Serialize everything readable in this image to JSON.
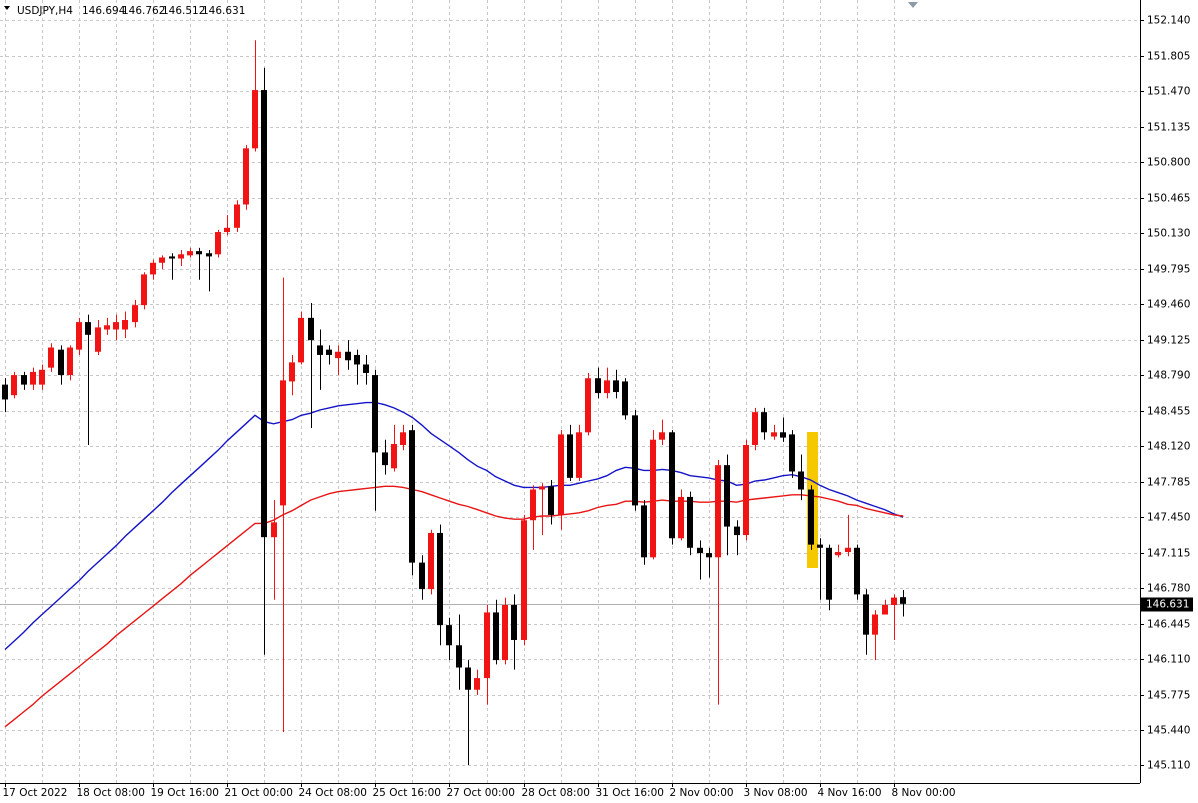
{
  "chart_data": {
    "type": "candlestick",
    "title": "USDJPY,H4",
    "grid": true,
    "up_color": "#f01414",
    "down_color": "#000000",
    "ylim": [
      144.94,
      152.33
    ],
    "yticks": [
      {
        "value": 152.14,
        "label": "152.140"
      },
      151.805,
      {
        "value": 151.47,
        "label": "151.470"
      },
      151.135,
      {
        "value": 150.8,
        "label": "150.800"
      },
      150.465,
      {
        "value": 150.13,
        "label": "150.130"
      },
      149.795,
      {
        "value": 149.46,
        "label": "149.460"
      },
      149.125,
      {
        "value": 148.79,
        "label": "148.790"
      },
      148.455,
      {
        "value": 148.12,
        "label": "148.120"
      },
      147.785,
      {
        "value": 147.45,
        "label": "147.450"
      },
      147.115,
      {
        "value": 146.78,
        "label": "146.780"
      },
      146.445,
      {
        "value": 146.11,
        "label": "146.110"
      },
      145.775,
      {
        "value": 145.44,
        "label": "145.440"
      },
      {
        "value": 145.11,
        "label": "145.110"
      }
    ],
    "categories": [
      "17 Oct 2022",
      null,
      null,
      null,
      null,
      null,
      null,
      null,
      "18 Oct 08:00",
      null,
      null,
      null,
      null,
      null,
      null,
      null,
      "19 Oct 16:00",
      null,
      null,
      null,
      null,
      null,
      null,
      null,
      "21 Oct 00:00",
      null,
      null,
      null,
      null,
      null,
      null,
      null,
      "24 Oct 08:00",
      null,
      null,
      null,
      null,
      null,
      null,
      null,
      "25 Oct 16:00",
      null,
      null,
      null,
      null,
      null,
      null,
      null,
      "27 Oct 00:00",
      null,
      null,
      null,
      null,
      null,
      null,
      null,
      "28 Oct 08:00",
      null,
      null,
      null,
      null,
      null,
      null,
      null,
      "31 Oct 16:00",
      null,
      null,
      null,
      null,
      null,
      null,
      null,
      "2 Nov 00:00",
      null,
      null,
      null,
      null,
      null,
      null,
      null,
      "3 Nov 08:00",
      null,
      null,
      null,
      null,
      null,
      null,
      null,
      "4 Nov 16:00",
      null,
      null,
      null,
      null,
      null,
      null,
      null,
      "8 Nov 00:00",
      null
    ],
    "open": [
      148.7,
      148.6,
      148.79,
      148.7,
      148.7,
      148.86,
      149.03,
      148.79,
      149.03,
      149.29,
      149.01,
      149.22,
      149.22,
      149.22,
      149.29,
      149.45,
      149.74,
      149.85,
      149.91,
      149.89,
      149.92,
      149.96,
      149.94,
      149.93,
      150.14,
      150.18,
      150.4,
      150.93,
      151.48,
      147.26,
      147.56,
      148.73,
      148.91,
      149.33,
      149.07,
      149.03,
      148.95,
      149.01,
      148.98,
      148.89,
      148.79,
      148.06,
      147.91,
      148.13,
      148.27,
      147.02,
      146.77,
      147.3,
      146.43,
      146.24,
      146.03,
      145.82,
      145.93,
      146.55,
      146.1,
      146.62,
      146.29,
      147.42,
      147.71,
      147.74,
      147.47,
      148.23,
      147.82,
      148.25,
      148.76,
      148.62,
      148.74,
      148.73,
      148.41,
      147.56,
      147.07,
      148.18,
      148.25,
      147.25,
      147.64,
      147.16,
      147.11,
      147.07,
      147.94,
      147.36,
      147.28,
      148.13,
      148.44,
      148.21,
      148.25,
      148.23,
      147.88,
      147.71,
      147.19,
      147.16,
      147.09,
      147.12,
      147.16,
      146.72,
      146.34,
      146.53,
      146.62,
      146.694
    ],
    "high": [
      148.76,
      148.82,
      148.82,
      148.86,
      148.89,
      149.09,
      149.07,
      149.07,
      149.33,
      149.36,
      149.31,
      149.33,
      149.36,
      149.39,
      149.5,
      149.76,
      149.88,
      149.92,
      149.94,
      149.97,
      149.99,
      149.99,
      149.97,
      150.16,
      150.3,
      150.44,
      150.96,
      151.95,
      151.69,
      147.61,
      149.71,
      148.98,
      149.39,
      149.47,
      149.22,
      149.07,
      149.07,
      149.12,
      149.03,
      148.98,
      148.84,
      148.18,
      148.32,
      148.32,
      148.32,
      147.09,
      147.33,
      147.38,
      146.5,
      146.53,
      146.1,
      146.01,
      146.62,
      146.67,
      146.69,
      146.72,
      147.47,
      147.75,
      147.77,
      147.8,
      148.27,
      148.32,
      148.32,
      148.81,
      148.86,
      148.86,
      148.84,
      148.76,
      148.46,
      147.61,
      148.27,
      148.37,
      148.27,
      147.71,
      147.69,
      147.23,
      147.16,
      147.99,
      148.04,
      147.42,
      148.18,
      148.48,
      148.48,
      148.32,
      148.39,
      148.27,
      148.04,
      147.75,
      147.25,
      147.19,
      147.19,
      147.47,
      147.19,
      146.77,
      146.57,
      146.67,
      146.72,
      146.762
    ],
    "low": [
      148.44,
      148.57,
      148.65,
      148.65,
      148.65,
      148.82,
      148.7,
      148.74,
      148.98,
      148.13,
      148.98,
      149.17,
      149.12,
      149.14,
      149.24,
      149.41,
      149.69,
      149.79,
      149.69,
      149.82,
      149.9,
      149.69,
      149.58,
      149.9,
      150.11,
      150.14,
      150.35,
      150.9,
      146.15,
      146.67,
      145.42,
      148.6,
      148.89,
      148.29,
      148.65,
      148.89,
      148.79,
      148.84,
      148.7,
      148.7,
      147.51,
      147.85,
      147.88,
      148.08,
      146.9,
      146.67,
      146.72,
      146.24,
      146.1,
      145.82,
      145.11,
      145.77,
      145.68,
      146.06,
      146.06,
      146.01,
      146.24,
      147.14,
      147.28,
      147.38,
      147.33,
      147.79,
      147.79,
      148.22,
      148.57,
      148.57,
      148.57,
      148.37,
      147.51,
      147.0,
      147.05,
      148.13,
      147.19,
      147.23,
      147.09,
      146.86,
      146.88,
      145.68,
      147.09,
      147.09,
      147.23,
      148.08,
      148.18,
      148.18,
      148.16,
      147.82,
      147.61,
      147.14,
      146.67,
      146.57,
      147.07,
      147.08,
      146.67,
      146.15,
      146.1,
      146.53,
      146.29,
      146.512
    ],
    "close": [
      148.56,
      148.79,
      148.7,
      148.82,
      148.84,
      149.05,
      148.79,
      149.05,
      149.29,
      149.17,
      149.24,
      149.26,
      149.29,
      149.31,
      149.45,
      149.74,
      149.85,
      149.9,
      149.89,
      149.93,
      149.96,
      149.93,
      149.91,
      150.14,
      150.18,
      150.4,
      150.93,
      151.48,
      147.26,
      147.4,
      148.74,
      148.91,
      149.33,
      149.12,
      148.98,
      148.98,
      149.01,
      148.93,
      148.89,
      148.81,
      148.06,
      147.94,
      148.14,
      148.25,
      147.02,
      146.77,
      147.3,
      146.43,
      146.24,
      146.03,
      145.82,
      145.93,
      146.55,
      146.1,
      146.62,
      146.29,
      147.42,
      147.71,
      147.74,
      147.47,
      148.23,
      147.82,
      148.25,
      148.76,
      148.62,
      148.74,
      148.63,
      148.41,
      147.56,
      147.07,
      148.18,
      148.25,
      147.25,
      147.64,
      147.16,
      147.11,
      147.07,
      147.94,
      147.36,
      147.28,
      148.13,
      148.44,
      148.25,
      148.25,
      148.2,
      147.88,
      147.71,
      147.19,
      147.16,
      146.67,
      147.12,
      147.16,
      146.72,
      146.34,
      146.53,
      146.62,
      146.69,
      146.631
    ],
    "moving_averages": [
      {
        "color": "#1414c8",
        "values": [
          146.2,
          146.28,
          146.36,
          146.45,
          146.53,
          146.61,
          146.69,
          146.77,
          146.85,
          146.94,
          147.02,
          147.1,
          147.18,
          147.27,
          147.35,
          147.43,
          147.51,
          147.59,
          147.68,
          147.76,
          147.84,
          147.92,
          148.0,
          148.08,
          148.17,
          148.25,
          148.33,
          148.41,
          148.35,
          148.33,
          148.35,
          148.37,
          148.41,
          148.43,
          148.46,
          148.48,
          148.5,
          148.51,
          148.52,
          148.53,
          148.53,
          148.51,
          148.48,
          148.44,
          148.39,
          148.32,
          148.24,
          148.18,
          148.12,
          148.06,
          147.99,
          147.93,
          147.89,
          147.83,
          147.79,
          147.75,
          147.73,
          147.73,
          147.73,
          147.74,
          147.75,
          147.75,
          147.77,
          147.79,
          147.81,
          147.84,
          147.89,
          147.92,
          147.91,
          147.89,
          147.89,
          147.9,
          147.89,
          147.87,
          147.84,
          147.83,
          147.82,
          147.8,
          147.79,
          147.75,
          147.76,
          147.79,
          147.8,
          147.82,
          147.84,
          147.85,
          147.83,
          147.8,
          147.75,
          147.71,
          147.68,
          147.65,
          147.61,
          147.58,
          147.55,
          147.52,
          147.48,
          147.45
        ]
      },
      {
        "color": "#e81414",
        "values": [
          145.47,
          145.54,
          145.61,
          145.68,
          145.76,
          145.83,
          145.9,
          145.97,
          146.04,
          146.11,
          146.18,
          146.25,
          146.33,
          146.4,
          146.47,
          146.54,
          146.61,
          146.68,
          146.75,
          146.82,
          146.9,
          146.97,
          147.04,
          147.11,
          147.18,
          147.25,
          147.32,
          147.39,
          147.39,
          147.42,
          147.47,
          147.51,
          147.56,
          147.61,
          147.64,
          147.67,
          147.69,
          147.7,
          147.71,
          147.72,
          147.73,
          147.74,
          147.74,
          147.73,
          147.71,
          147.69,
          147.66,
          147.63,
          147.6,
          147.57,
          147.55,
          147.52,
          147.49,
          147.46,
          147.44,
          147.43,
          147.43,
          147.45,
          147.46,
          147.46,
          147.47,
          147.48,
          147.49,
          147.51,
          147.54,
          147.56,
          147.57,
          147.6,
          147.6,
          147.59,
          147.6,
          147.61,
          147.6,
          147.6,
          147.6,
          147.59,
          147.59,
          147.6,
          147.6,
          147.59,
          147.61,
          147.62,
          147.63,
          147.64,
          147.65,
          147.66,
          147.66,
          147.65,
          147.64,
          147.62,
          147.6,
          147.57,
          147.56,
          147.53,
          147.51,
          147.49,
          147.47,
          147.46
        ]
      }
    ]
  }
}
